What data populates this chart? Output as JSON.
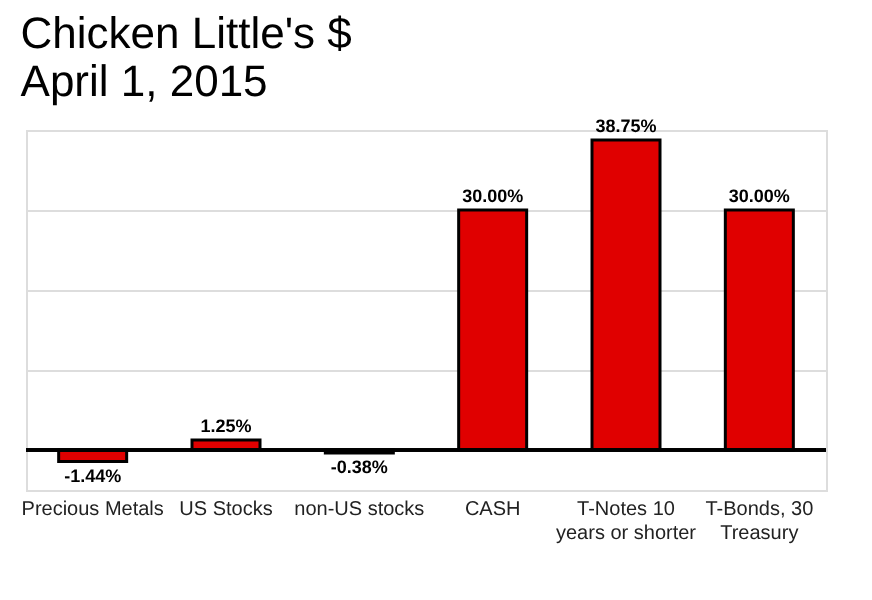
{
  "chart_data": {
    "type": "bar",
    "title": [
      "Chicken Little's $",
      "April 1, 2015"
    ],
    "categories": [
      "Precious Metals",
      "US Stocks",
      "non-US stocks",
      "CASH",
      "T-Notes 10\nyears or shorter",
      "T-Bonds, 30\nTreasury"
    ],
    "values": [
      -1.44,
      1.25,
      -0.38,
      30.0,
      38.75,
      30.0
    ],
    "value_labels": [
      "-1.44%",
      "1.25%",
      "-0.38%",
      "30.00%",
      "38.75%",
      "30.00%"
    ],
    "color": "#e00000",
    "ylim": [
      -5,
      40
    ],
    "yticks": [
      {
        "value": 0,
        "label": null
      },
      {
        "value": 10,
        "label": null
      },
      {
        "value": 20,
        "label": null
      },
      {
        "value": 30,
        "label": null
      },
      {
        "value": 40,
        "label": null
      }
    ],
    "grid": "y",
    "tick_labels": "x"
  }
}
